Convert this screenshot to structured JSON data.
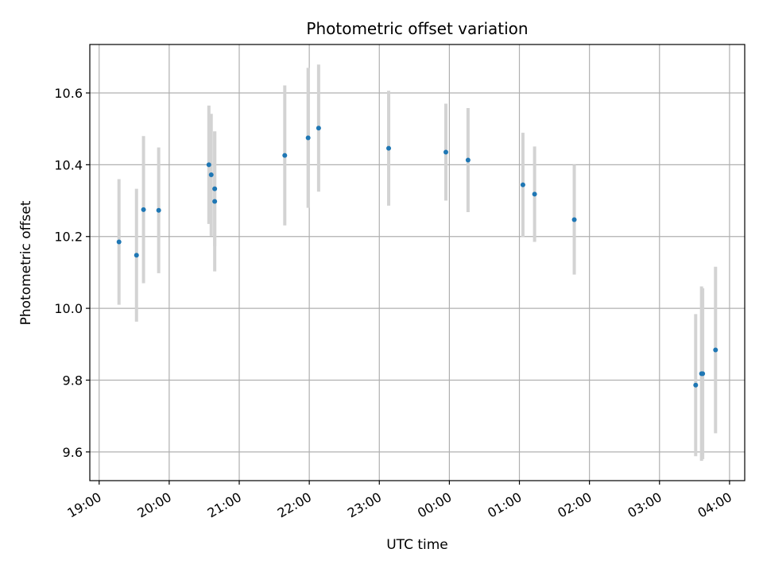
{
  "chart_data": {
    "type": "scatter",
    "title": "Photometric offset variation",
    "xlabel": "UTC time",
    "ylabel": "Photometric offset",
    "x_ticks": [
      "19:00",
      "20:00",
      "21:00",
      "22:00",
      "23:00",
      "00:00",
      "01:00",
      "02:00",
      "03:00",
      "04:00"
    ],
    "y_ticks": [
      "9.6",
      "9.8",
      "10.0",
      "10.2",
      "10.4",
      "10.6"
    ],
    "y_tick_values": [
      9.6,
      9.8,
      10.0,
      10.2,
      10.4,
      10.6
    ],
    "xlim": [
      "2000-01-01T18:52",
      "2000-01-02T04:13"
    ],
    "ylim": [
      9.52,
      10.735
    ],
    "grid": true,
    "point_color": "#1f77b4",
    "errorbar_color": "#d3d3d3",
    "series": [
      {
        "points": [
          {
            "t": "2000-01-01T19:17",
            "y": 10.185,
            "err": 0.175
          },
          {
            "t": "2000-01-01T19:32",
            "y": 10.148,
            "err": 0.185
          },
          {
            "t": "2000-01-01T19:38",
            "y": 10.275,
            "err": 0.205
          },
          {
            "t": "2000-01-01T19:51",
            "y": 10.273,
            "err": 0.175
          },
          {
            "t": "2000-01-01T20:34",
            "y": 10.4,
            "err": 0.165
          },
          {
            "t": "2000-01-01T20:36",
            "y": 10.372,
            "err": 0.17
          },
          {
            "t": "2000-01-01T20:39",
            "y": 10.333,
            "err": 0.16
          },
          {
            "t": "2000-01-01T20:39",
            "y": 10.298,
            "err": 0.195
          },
          {
            "t": "2000-01-01T21:39",
            "y": 10.426,
            "err": 0.195
          },
          {
            "t": "2000-01-01T21:59",
            "y": 10.475,
            "err": 0.195
          },
          {
            "t": "2000-01-01T22:08",
            "y": 10.502,
            "err": 0.177
          },
          {
            "t": "2000-01-01T23:08",
            "y": 10.446,
            "err": 0.16
          },
          {
            "t": "2000-01-01T23:57",
            "y": 10.435,
            "err": 0.135
          },
          {
            "t": "2000-01-02T00:16",
            "y": 10.413,
            "err": 0.145
          },
          {
            "t": "2000-01-02T01:03",
            "y": 10.344,
            "err": 0.145
          },
          {
            "t": "2000-01-02T01:13",
            "y": 10.318,
            "err": 0.133
          },
          {
            "t": "2000-01-02T01:47",
            "y": 10.247,
            "err": 0.153
          },
          {
            "t": "2000-01-02T03:31",
            "y": 9.786,
            "err": 0.198
          },
          {
            "t": "2000-01-02T03:36",
            "y": 9.818,
            "err": 0.243
          },
          {
            "t": "2000-01-02T03:37",
            "y": 9.818,
            "err": 0.238
          },
          {
            "t": "2000-01-02T03:48",
            "y": 9.884,
            "err": 0.232
          }
        ]
      }
    ]
  }
}
